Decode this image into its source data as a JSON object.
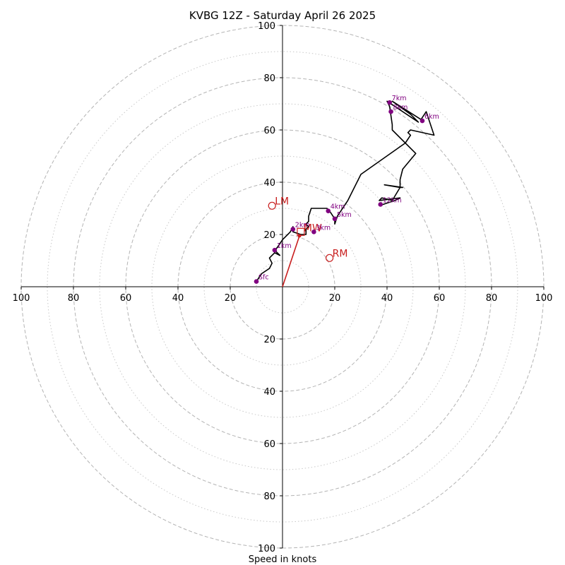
{
  "chart_data": {
    "type": "scatter",
    "title": "KVBG 12Z - Saturday April 26 2025",
    "xlabel": "Speed in knots",
    "ylabel": "",
    "xlim": [
      -100,
      100
    ],
    "ylim": [
      -100,
      100
    ],
    "grid": {
      "major_rings": [
        20,
        40,
        60,
        80,
        100
      ],
      "minor_rings": [
        10,
        30,
        50,
        70,
        90
      ],
      "major_style": "dashed",
      "minor_style": "dotted"
    },
    "axis_ticks": {
      "x_tick_labels": [
        "100",
        "80",
        "60",
        "40",
        "20",
        "20",
        "40",
        "60",
        "80",
        "100"
      ],
      "x_tick_values": [
        -100,
        -80,
        -60,
        -40,
        -20,
        20,
        40,
        60,
        80,
        100
      ],
      "y_tick_labels": [
        "100",
        "80",
        "60",
        "40",
        "20",
        "20",
        "40",
        "60",
        "80",
        "100"
      ],
      "y_tick_values": [
        100,
        80,
        60,
        40,
        20,
        -20,
        -40,
        -60,
        -80,
        -100
      ]
    },
    "hodograph_trace": {
      "color": "#000000",
      "points": [
        [
          -10,
          2
        ],
        [
          -8,
          5
        ],
        [
          -5,
          7
        ],
        [
          -4,
          9
        ],
        [
          -5,
          11
        ],
        [
          -4,
          12
        ],
        [
          -3,
          13
        ],
        [
          -1,
          12
        ],
        [
          -3,
          14
        ],
        [
          -2,
          15
        ],
        [
          0,
          18
        ],
        [
          3,
          21
        ],
        [
          4,
          23
        ],
        [
          4,
          21
        ],
        [
          7,
          20
        ],
        [
          9,
          20
        ],
        [
          9,
          22
        ],
        [
          10,
          23
        ],
        [
          9,
          24
        ],
        [
          10,
          25
        ],
        [
          10,
          27
        ],
        [
          11,
          30
        ],
        [
          17,
          30
        ],
        [
          18,
          29
        ],
        [
          20,
          26
        ],
        [
          20,
          24
        ],
        [
          21,
          27
        ],
        [
          25,
          33
        ],
        [
          30,
          43
        ],
        [
          47,
          55
        ],
        [
          49,
          58
        ],
        [
          48,
          59
        ],
        [
          49,
          60
        ],
        [
          58,
          58
        ],
        [
          55,
          67
        ],
        [
          53,
          64
        ],
        [
          42,
          71
        ],
        [
          49,
          66
        ],
        [
          52,
          63
        ],
        [
          46,
          67
        ],
        [
          40,
          71
        ],
        [
          41,
          69
        ],
        [
          42,
          62
        ],
        [
          42,
          60
        ],
        [
          51,
          51
        ],
        [
          46,
          45
        ],
        [
          45,
          41
        ],
        [
          45,
          38
        ],
        [
          46,
          38
        ],
        [
          39,
          39
        ],
        [
          45,
          38
        ],
        [
          42,
          33
        ],
        [
          38,
          34
        ],
        [
          37,
          33
        ],
        [
          45,
          34
        ],
        [
          43,
          33
        ],
        [
          37,
          31
        ]
      ]
    },
    "height_markers": [
      {
        "label": "Sfc",
        "x": -10,
        "y": 2
      },
      {
        "label": "1km",
        "x": -3,
        "y": 14
      },
      {
        "label": "2km",
        "x": 4,
        "y": 22
      },
      {
        "label": "3km",
        "x": 12,
        "y": 21
      },
      {
        "label": "4km",
        "x": 17.5,
        "y": 29
      },
      {
        "label": "5km",
        "x": 20,
        "y": 26
      },
      {
        "label": "6km",
        "x": 53.5,
        "y": 63.5
      },
      {
        "label": "7km",
        "x": 41,
        "y": 70.5
      },
      {
        "label": "8km",
        "x": 41.5,
        "y": 67
      },
      {
        "label": "12km",
        "x": 37.5,
        "y": 31.5
      }
    ],
    "storm_motion": {
      "color": "#c81e1e",
      "vector_to": [
        6.5,
        19.5
      ],
      "points": [
        {
          "label": "LM",
          "x": -4,
          "y": 31
        },
        {
          "label": "RM",
          "x": 18,
          "y": 11
        }
      ],
      "mean_wind": {
        "label": "MW",
        "x": 7,
        "y": 21
      }
    }
  }
}
